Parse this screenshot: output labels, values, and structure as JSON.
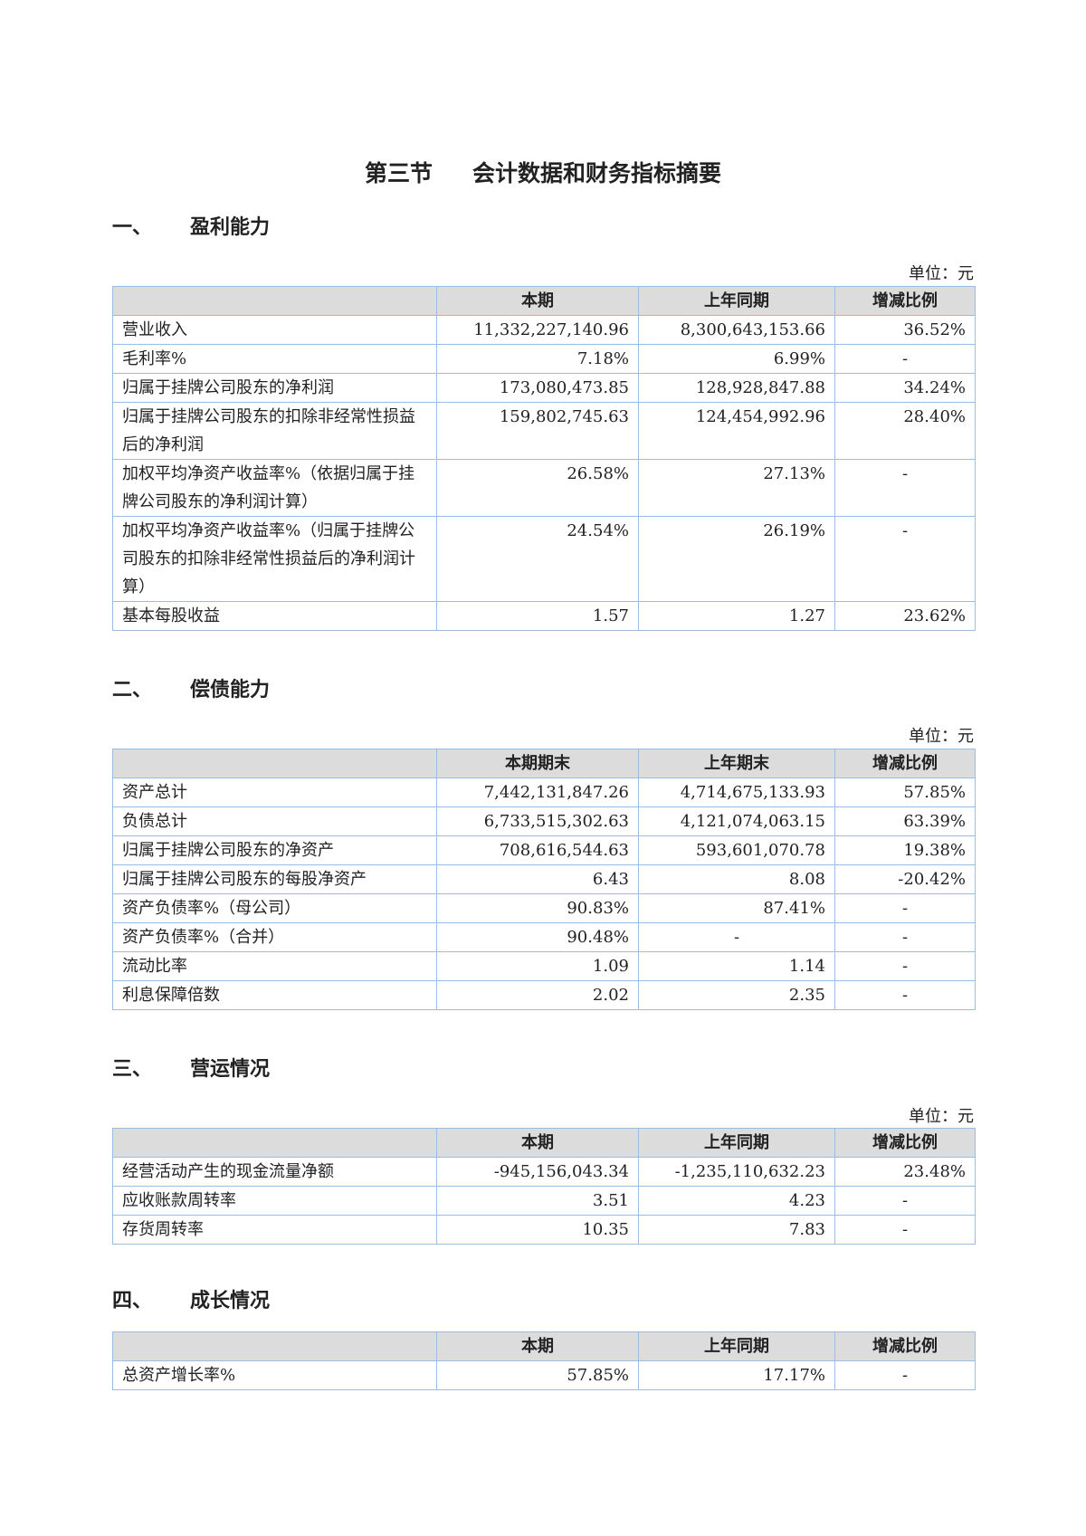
{
  "title": {
    "section": "第三节",
    "name": "会计数据和财务指标摘要"
  },
  "unit_label": "单位：元",
  "sections": [
    {
      "num": "一、",
      "title": "盈利能力",
      "headers": [
        "",
        "本期",
        "上年同期",
        "增减比例"
      ],
      "rows": [
        [
          "营业收入",
          "11,332,227,140.96",
          "8,300,643,153.66",
          "36.52%"
        ],
        [
          "毛利率%",
          "7.18%",
          "6.99%",
          "-"
        ],
        [
          "归属于挂牌公司股东的净利润",
          "173,080,473.85",
          "128,928,847.88",
          "34.24%"
        ],
        [
          "归属于挂牌公司股东的扣除非经常性损益后的净利润",
          "159,802,745.63",
          "124,454,992.96",
          "28.40%"
        ],
        [
          "加权平均净资产收益率%（依据归属于挂牌公司股东的净利润计算）",
          "26.58%",
          "27.13%",
          "-"
        ],
        [
          "加权平均净资产收益率%（归属于挂牌公司股东的扣除非经常性损益后的净利润计算）",
          "24.54%",
          "26.19%",
          "-"
        ],
        [
          "基本每股收益",
          "1.57",
          "1.27",
          "23.62%"
        ]
      ]
    },
    {
      "num": "二、",
      "title": "偿债能力",
      "headers": [
        "",
        "本期期末",
        "上年期末",
        "增减比例"
      ],
      "rows": [
        [
          "资产总计",
          "7,442,131,847.26",
          "4,714,675,133.93",
          "57.85%"
        ],
        [
          "负债总计",
          "6,733,515,302.63",
          "4,121,074,063.15",
          "63.39%"
        ],
        [
          "归属于挂牌公司股东的净资产",
          "708,616,544.63",
          "593,601,070.78",
          "19.38%"
        ],
        [
          "归属于挂牌公司股东的每股净资产",
          "6.43",
          "8.08",
          "-20.42%"
        ],
        [
          "资产负债率%（母公司）",
          "90.83%",
          "87.41%",
          "-"
        ],
        [
          "资产负债率%（合并）",
          "90.48%",
          "-",
          "-"
        ],
        [
          "流动比率",
          "1.09",
          "1.14",
          "-"
        ],
        [
          "利息保障倍数",
          "2.02",
          "2.35",
          "-"
        ]
      ]
    },
    {
      "num": "三、",
      "title": "营运情况",
      "headers": [
        "",
        "本期",
        "上年同期",
        "增减比例"
      ],
      "rows": [
        [
          "经营活动产生的现金流量净额",
          "-945,156,043.34",
          "-1,235,110,632.23",
          "23.48%"
        ],
        [
          "应收账款周转率",
          "3.51",
          "4.23",
          "-"
        ],
        [
          "存货周转率",
          "10.35",
          "7.83",
          "-"
        ]
      ]
    },
    {
      "num": "四、",
      "title": "成长情况",
      "headers": [
        "",
        "本期",
        "上年同期",
        "增减比例"
      ],
      "rows": [
        [
          "总资产增长率%",
          "57.85%",
          "17.17%",
          "-"
        ]
      ]
    }
  ]
}
